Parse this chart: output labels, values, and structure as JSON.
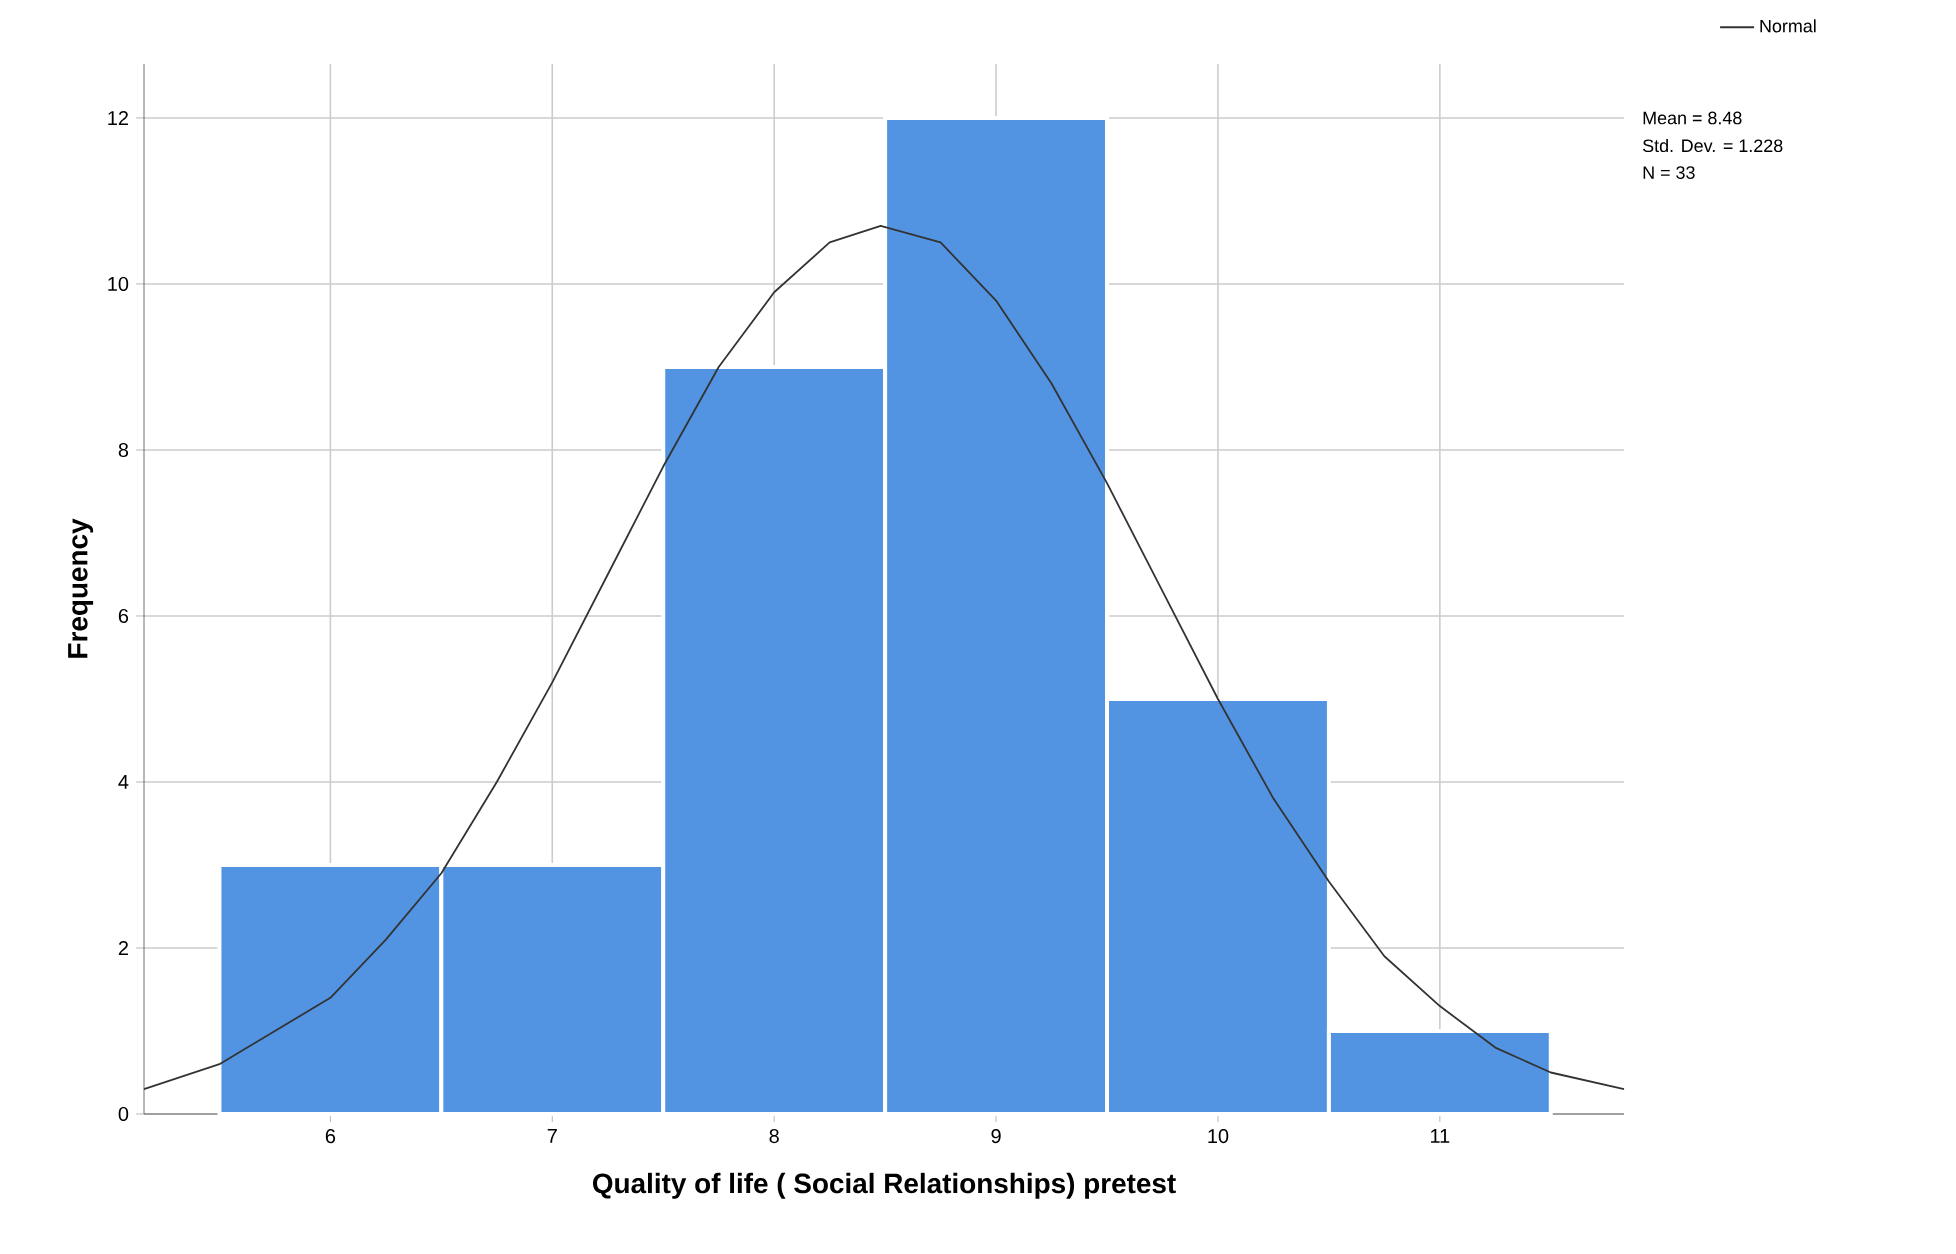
{
  "chart_data": {
    "type": "histogram",
    "xlabel": "Quality of life ( Social Relationships) pretest",
    "ylabel": "Frequency",
    "bins": [
      5.5,
      6.5,
      7.5,
      8.5,
      9.5,
      10.5,
      11.5
    ],
    "values": [
      3,
      3,
      9,
      12,
      5,
      1
    ],
    "color": "#5294e2",
    "series": [
      {
        "name": "Normal",
        "type": "line",
        "color": "#333333",
        "x": [
          5.16,
          5.5,
          6.0,
          6.25,
          6.5,
          6.75,
          7.0,
          7.25,
          7.5,
          7.75,
          8.0,
          8.25,
          8.48,
          8.75,
          9.0,
          9.25,
          9.5,
          9.75,
          10.0,
          10.25,
          10.5,
          10.75,
          11.0,
          11.25,
          11.5,
          11.83
        ],
        "values": [
          0.3,
          0.6,
          1.4,
          2.1,
          2.9,
          4.0,
          5.2,
          6.5,
          7.8,
          9.0,
          9.9,
          10.5,
          10.7,
          10.5,
          9.8,
          8.8,
          7.6,
          6.3,
          5.0,
          3.8,
          2.8,
          1.9,
          1.3,
          0.8,
          0.5,
          0.3
        ]
      }
    ],
    "xlim": [
      5.16,
      11.83
    ],
    "ylim": [
      0,
      12.65
    ],
    "xticks": [
      6,
      7,
      8,
      9,
      10,
      11
    ],
    "yticks": [
      0,
      2,
      4,
      6,
      8,
      10,
      12
    ],
    "grid": true,
    "legend": "top right",
    "marker": "none",
    "line_style": "solid",
    "annotations": [
      "Mean = 8.48",
      "Std. Dev. = 1.228",
      "N = 33"
    ]
  }
}
